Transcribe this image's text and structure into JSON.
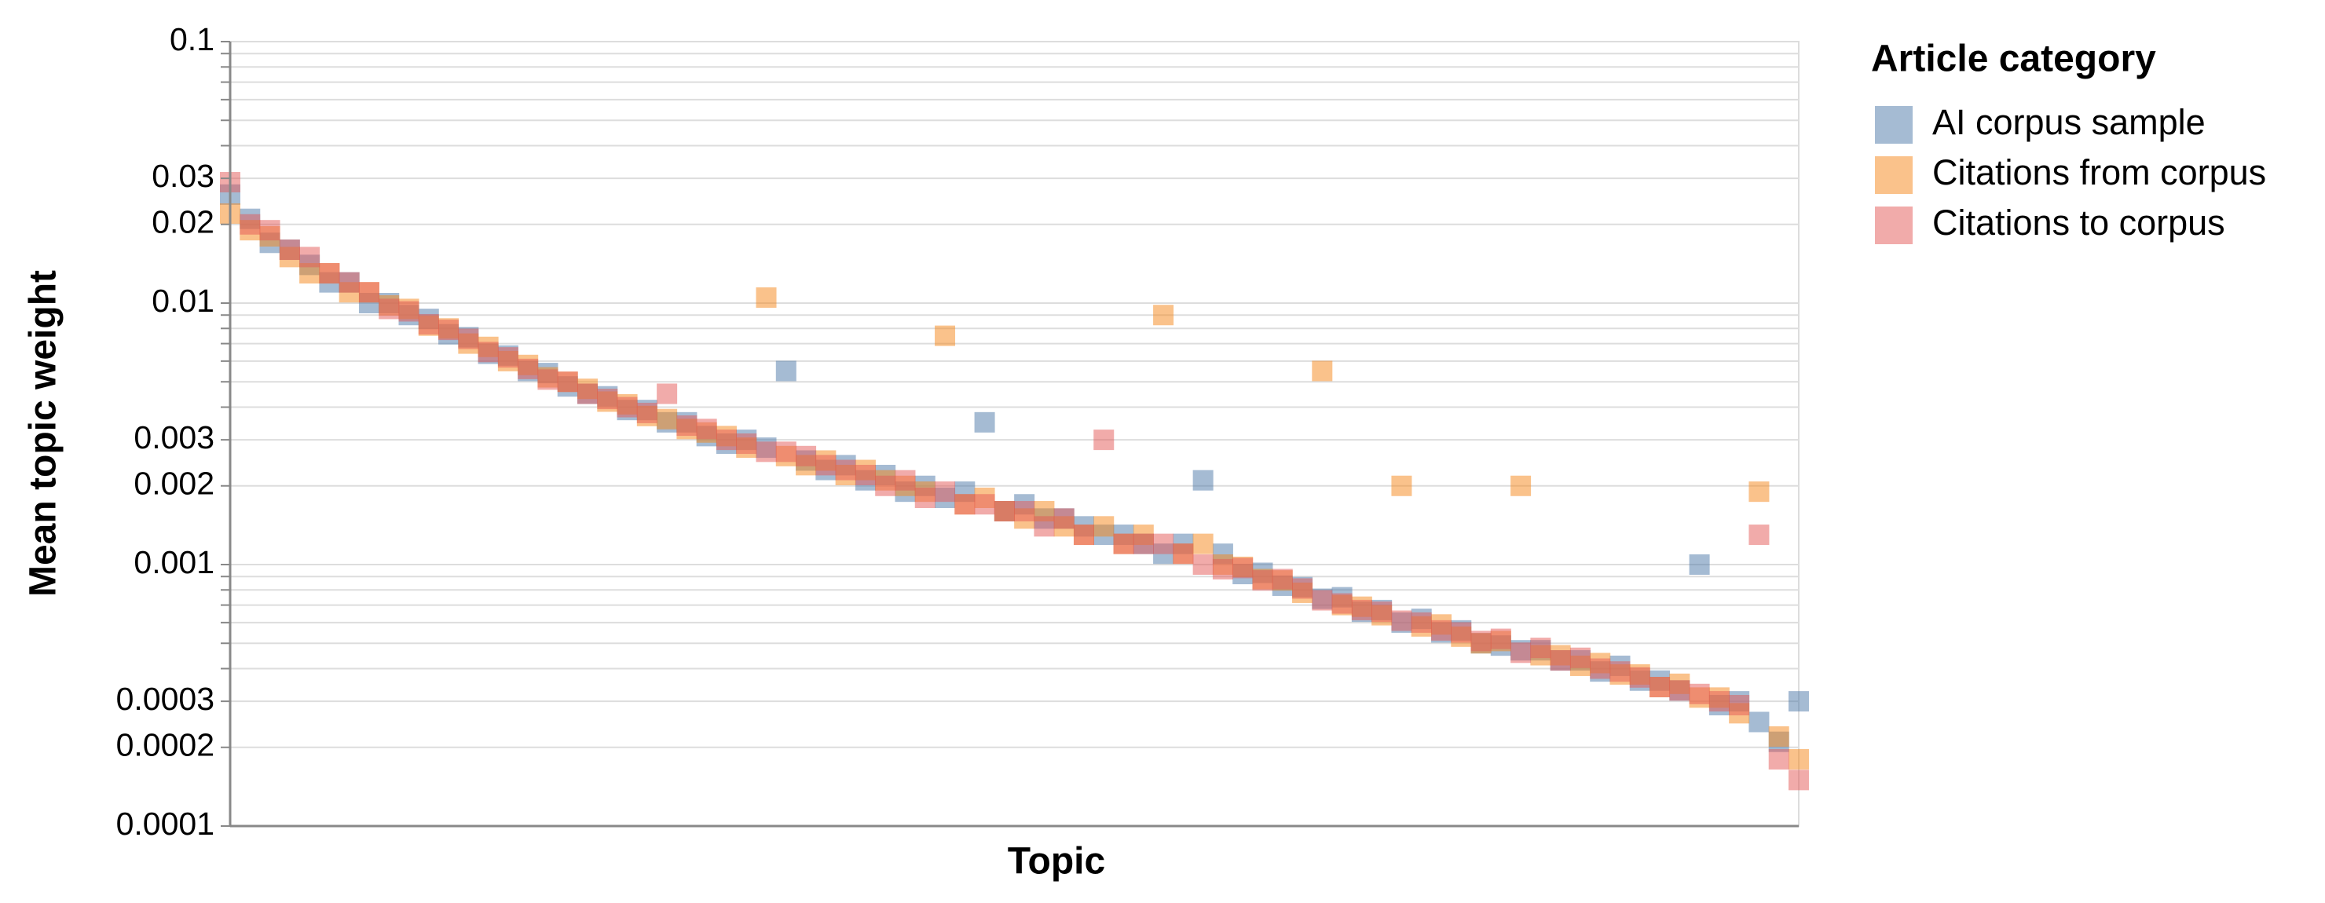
{
  "chart_data": {
    "type": "scatter",
    "x_label": "Topic",
    "y_label": "Mean topic weight",
    "legend_title": "Article category",
    "legend": "right",
    "yscale": "log",
    "grid": true,
    "ylim": [
      0.0001,
      0.1
    ],
    "yticks": [
      0.0001,
      0.0002,
      0.0003,
      0.001,
      0.002,
      0.003,
      0.01,
      0.02,
      0.03,
      0.1
    ],
    "minor_yticks": [
      0.0004,
      0.0005,
      0.0006,
      0.0007,
      0.0008,
      0.0009,
      0.004,
      0.005,
      0.006,
      0.007,
      0.008,
      0.009,
      0.04,
      0.05,
      0.06,
      0.07,
      0.08,
      0.09
    ],
    "xlim": [
      0,
      79
    ],
    "x": [
      0,
      1,
      2,
      3,
      4,
      5,
      6,
      7,
      8,
      9,
      10,
      11,
      12,
      13,
      14,
      15,
      16,
      17,
      18,
      19,
      20,
      21,
      22,
      23,
      24,
      25,
      26,
      27,
      28,
      29,
      30,
      31,
      32,
      33,
      34,
      35,
      36,
      37,
      38,
      39,
      40,
      41,
      42,
      43,
      44,
      45,
      46,
      47,
      48,
      49,
      50,
      51,
      52,
      53,
      54,
      55,
      56,
      57,
      58,
      59,
      60,
      61,
      62,
      63,
      64,
      65,
      66,
      67,
      68,
      69,
      70,
      71,
      72,
      73,
      74,
      75,
      76,
      77,
      78,
      79
    ],
    "series": [
      {
        "name": "AI corpus sample",
        "color": "#4c78a8",
        "values": [
          0.026,
          0.021,
          0.017,
          0.016,
          0.014,
          0.012,
          0.012,
          0.01,
          0.01,
          0.009,
          0.0087,
          0.0076,
          0.0074,
          0.0064,
          0.0063,
          0.0055,
          0.0054,
          0.0048,
          0.0045,
          0.0044,
          0.0039,
          0.0039,
          0.0035,
          0.0035,
          0.0031,
          0.0029,
          0.003,
          0.0028,
          0.0055,
          0.0025,
          0.0023,
          0.0024,
          0.0021,
          0.0022,
          0.0019,
          0.002,
          0.0018,
          0.0019,
          0.0035,
          0.0016,
          0.0017,
          0.0015,
          0.0015,
          0.0014,
          0.0013,
          0.0013,
          0.0012,
          0.0011,
          0.0012,
          0.0021,
          0.0011,
          0.00092,
          0.00093,
          0.00083,
          0.00082,
          0.00074,
          0.00075,
          0.00066,
          0.00067,
          0.0006,
          0.00062,
          0.00055,
          0.00056,
          0.0005,
          0.00049,
          0.00047,
          0.00047,
          0.00043,
          0.00043,
          0.00039,
          0.00041,
          0.00036,
          0.00036,
          0.00033,
          0.001,
          0.00029,
          0.0003,
          0.00025,
          0.00021,
          0.0003
        ]
      },
      {
        "name": "Citations from corpus",
        "color": "#f58518",
        "values": [
          0.022,
          0.019,
          0.018,
          0.015,
          0.013,
          0.013,
          0.011,
          0.011,
          0.0098,
          0.0095,
          0.0082,
          0.008,
          0.007,
          0.0068,
          0.006,
          0.0058,
          0.0052,
          0.005,
          0.0047,
          0.0042,
          0.0041,
          0.0037,
          0.0036,
          0.0033,
          0.0032,
          0.0031,
          0.0028,
          0.0105,
          0.0026,
          0.0024,
          0.0025,
          0.0022,
          0.0023,
          0.0021,
          0.002,
          0.0019,
          0.0075,
          0.0017,
          0.0018,
          0.0016,
          0.0015,
          0.0016,
          0.0014,
          0.0013,
          0.0014,
          0.0012,
          0.0013,
          0.009,
          0.0011,
          0.0012,
          0.001,
          0.00098,
          0.00088,
          0.00087,
          0.00078,
          0.0055,
          0.0007,
          0.00069,
          0.00064,
          0.002,
          0.00058,
          0.00059,
          0.00053,
          0.0005,
          0.00051,
          0.002,
          0.00045,
          0.00045,
          0.00041,
          0.00042,
          0.00038,
          0.00038,
          0.00034,
          0.00035,
          0.00031,
          0.00031,
          0.00027,
          0.0019,
          0.00022,
          0.00018
        ]
      },
      {
        "name": "Citations to corpus",
        "color": "#e45756",
        "values": [
          0.029,
          0.02,
          0.019,
          0.016,
          0.015,
          0.013,
          0.012,
          0.011,
          0.0095,
          0.0093,
          0.0083,
          0.0079,
          0.0073,
          0.0065,
          0.0062,
          0.0056,
          0.0051,
          0.005,
          0.0045,
          0.0043,
          0.004,
          0.0038,
          0.0045,
          0.0034,
          0.0033,
          0.003,
          0.0029,
          0.0027,
          0.0027,
          0.0026,
          0.0024,
          0.0023,
          0.0022,
          0.002,
          0.0021,
          0.0018,
          0.0019,
          0.0017,
          0.0017,
          0.0016,
          0.0016,
          0.0014,
          0.0015,
          0.0013,
          0.003,
          0.0012,
          0.0012,
          0.0012,
          0.0011,
          0.001,
          0.00096,
          0.00097,
          0.00087,
          0.00088,
          0.00081,
          0.00073,
          0.00071,
          0.00067,
          0.00066,
          0.00061,
          0.0006,
          0.00056,
          0.00055,
          0.00051,
          0.00052,
          0.00046,
          0.00048,
          0.00043,
          0.00044,
          0.0004,
          0.00039,
          0.00037,
          0.00034,
          0.00033,
          0.00032,
          0.0003,
          0.00029,
          0.0013,
          0.00018,
          0.00015
        ]
      }
    ]
  }
}
